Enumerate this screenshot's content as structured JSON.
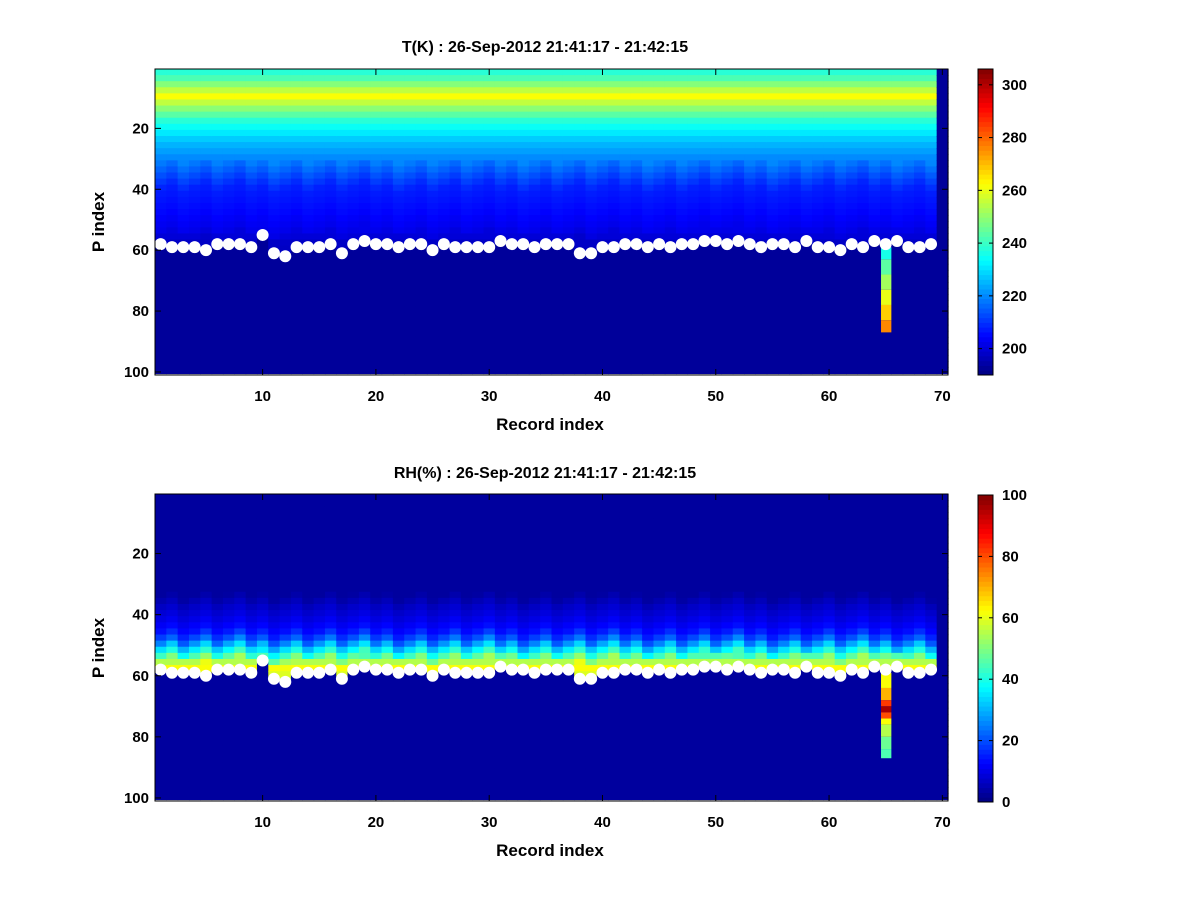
{
  "chart_data": [
    {
      "type": "heatmap",
      "title": "T(K) : 26-Sep-2012 21:41:17 - 21:42:15",
      "xlabel": "Record index",
      "ylabel": "P index",
      "xlim": [
        0.5,
        70.5
      ],
      "ylim": [
        0.5,
        101
      ],
      "y_reversed": true,
      "xticks": [
        10,
        20,
        30,
        40,
        50,
        60,
        70
      ],
      "yticks": [
        20,
        40,
        60,
        80,
        100
      ],
      "colorbar": {
        "min": 190,
        "max": 306,
        "ticks": [
          200,
          220,
          240,
          260,
          280,
          300
        ]
      },
      "field": {
        "profile": [
          {
            "p": 1,
            "v": 236
          },
          {
            "p": 4,
            "v": 242
          },
          {
            "p": 7,
            "v": 252
          },
          {
            "p": 10,
            "v": 262
          },
          {
            "p": 13,
            "v": 252
          },
          {
            "p": 18,
            "v": 238
          },
          {
            "p": 25,
            "v": 226
          },
          {
            "p": 32,
            "v": 218
          },
          {
            "p": 40,
            "v": 208
          },
          {
            "p": 48,
            "v": 205
          },
          {
            "p": 54,
            "v": 202
          },
          {
            "p": 58,
            "v": 198
          },
          {
            "p": 100,
            "v": 193
          }
        ],
        "fill_below_surface": 193
      },
      "special_column": {
        "x": 65,
        "segments": [
          {
            "p_from": 59,
            "p_to": 63,
            "v": 236
          },
          {
            "p_from": 63,
            "p_to": 68,
            "v": 244
          },
          {
            "p_from": 68,
            "p_to": 73,
            "v": 252
          },
          {
            "p_from": 73,
            "p_to": 78,
            "v": 260
          },
          {
            "p_from": 78,
            "p_to": 83,
            "v": 268
          },
          {
            "p_from": 83,
            "p_to": 87,
            "v": 276
          }
        ]
      },
      "dark_column": {
        "x": 70,
        "v": 193
      },
      "points_series_name": "",
      "points": {
        "x": [
          1,
          2,
          3,
          4,
          5,
          6,
          7,
          8,
          9,
          10,
          11,
          12,
          13,
          14,
          15,
          16,
          17,
          18,
          19,
          20,
          21,
          22,
          23,
          24,
          25,
          26,
          27,
          28,
          29,
          30,
          31,
          32,
          33,
          34,
          35,
          36,
          37,
          38,
          39,
          40,
          41,
          42,
          43,
          44,
          45,
          46,
          47,
          48,
          49,
          50,
          51,
          52,
          53,
          54,
          55,
          56,
          57,
          58,
          59,
          60,
          61,
          62,
          63,
          64,
          65,
          66,
          67,
          68,
          69
        ],
        "y": [
          58,
          59,
          59,
          59,
          60,
          58,
          58,
          58,
          59,
          55,
          61,
          62,
          59,
          59,
          59,
          58,
          61,
          58,
          57,
          58,
          58,
          59,
          58,
          58,
          60,
          58,
          59,
          59,
          59,
          59,
          57,
          58,
          58,
          59,
          58,
          58,
          58,
          61,
          61,
          59,
          59,
          58,
          58,
          59,
          58,
          59,
          58,
          58,
          57,
          57,
          58,
          57,
          58,
          59,
          58,
          58,
          59,
          57,
          59,
          59,
          60,
          58,
          59,
          57,
          58,
          57,
          59,
          59,
          58
        ]
      }
    },
    {
      "type": "heatmap",
      "title": "RH(%) : 26-Sep-2012 21:41:17 - 21:42:15",
      "xlabel": "Record index",
      "ylabel": "P index",
      "xlim": [
        0.5,
        70.5
      ],
      "ylim": [
        0.5,
        101
      ],
      "y_reversed": true,
      "xticks": [
        10,
        20,
        30,
        40,
        50,
        60,
        70
      ],
      "yticks": [
        20,
        40,
        60,
        80,
        100
      ],
      "colorbar": {
        "min": 0,
        "max": 100,
        "ticks": [
          0,
          20,
          40,
          60,
          80,
          100
        ]
      },
      "field": {
        "profile": [
          {
            "p": 1,
            "v": 3
          },
          {
            "p": 34,
            "v": 3
          },
          {
            "p": 38,
            "v": 7
          },
          {
            "p": 42,
            "v": 10
          },
          {
            "p": 46,
            "v": 14
          },
          {
            "p": 49,
            "v": 22
          },
          {
            "p": 51,
            "v": 32
          },
          {
            "p": 53,
            "v": 40
          },
          {
            "p": 55,
            "v": 50
          },
          {
            "p": 57,
            "v": 60
          },
          {
            "p": 58,
            "v": 62
          },
          {
            "p": 100,
            "v": 3
          }
        ],
        "fill_below_surface": 3
      },
      "special_column": {
        "x": 65,
        "segments": [
          {
            "p_from": 59,
            "p_to": 64,
            "v": 62
          },
          {
            "p_from": 64,
            "p_to": 68,
            "v": 70
          },
          {
            "p_from": 68,
            "p_to": 70,
            "v": 82
          },
          {
            "p_from": 70,
            "p_to": 72,
            "v": 96
          },
          {
            "p_from": 72,
            "p_to": 74,
            "v": 80
          },
          {
            "p_from": 74,
            "p_to": 76,
            "v": 62
          },
          {
            "p_from": 76,
            "p_to": 80,
            "v": 55
          },
          {
            "p_from": 80,
            "p_to": 84,
            "v": 48
          },
          {
            "p_from": 84,
            "p_to": 87,
            "v": 45
          }
        ]
      },
      "dark_column": {
        "x": 70,
        "v": 3
      },
      "points_series_name": "",
      "points": {
        "x": [
          1,
          2,
          3,
          4,
          5,
          6,
          7,
          8,
          9,
          10,
          11,
          12,
          13,
          14,
          15,
          16,
          17,
          18,
          19,
          20,
          21,
          22,
          23,
          24,
          25,
          26,
          27,
          28,
          29,
          30,
          31,
          32,
          33,
          34,
          35,
          36,
          37,
          38,
          39,
          40,
          41,
          42,
          43,
          44,
          45,
          46,
          47,
          48,
          49,
          50,
          51,
          52,
          53,
          54,
          55,
          56,
          57,
          58,
          59,
          60,
          61,
          62,
          63,
          64,
          65,
          66,
          67,
          68,
          69
        ],
        "y": [
          58,
          59,
          59,
          59,
          60,
          58,
          58,
          58,
          59,
          55,
          61,
          62,
          59,
          59,
          59,
          58,
          61,
          58,
          57,
          58,
          58,
          59,
          58,
          58,
          60,
          58,
          59,
          59,
          59,
          59,
          57,
          58,
          58,
          59,
          58,
          58,
          58,
          61,
          61,
          59,
          59,
          58,
          58,
          59,
          58,
          59,
          58,
          58,
          57,
          57,
          58,
          57,
          58,
          59,
          58,
          58,
          59,
          57,
          59,
          59,
          60,
          58,
          59,
          57,
          58,
          57,
          59,
          59,
          58
        ]
      }
    }
  ]
}
